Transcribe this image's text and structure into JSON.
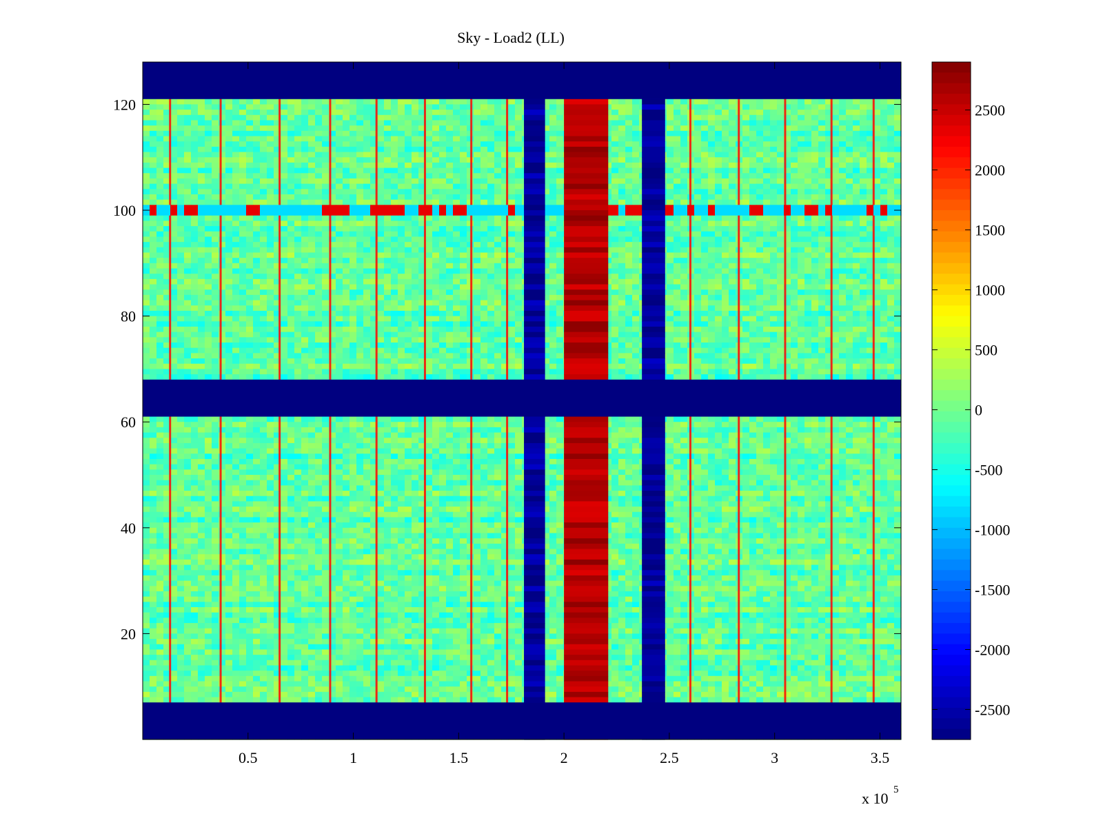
{
  "figure": {
    "background": "#ffffff"
  },
  "chart_data": {
    "type": "heatmap",
    "title": "Sky - Load2 (LL)",
    "xlabel": "",
    "ylabel": "",
    "xlim": [
      0,
      360000
    ],
    "ylim": [
      0,
      128
    ],
    "x_ticks": [
      50000,
      100000,
      150000,
      200000,
      250000,
      300000,
      350000
    ],
    "x_tick_labels": [
      "0.5",
      "1",
      "1.5",
      "2",
      "2.5",
      "3",
      "3.5"
    ],
    "x_exponent_label": {
      "base": "x 10",
      "exponent": "5"
    },
    "y_ticks": [
      20,
      40,
      60,
      80,
      100,
      120
    ],
    "y_tick_labels": [
      "20",
      "40",
      "60",
      "80",
      "100",
      "120"
    ],
    "colorbar": {
      "colormap": "jet",
      "clim": [
        -2750,
        2900
      ],
      "ticks": [
        2500,
        2000,
        1500,
        1000,
        500,
        0,
        -500,
        -1000,
        -1500,
        -2000,
        -2500
      ],
      "tick_labels": [
        "2500",
        "2000",
        "1500",
        "1000",
        "500",
        "0",
        "-500",
        "-1000",
        "-1500",
        "-2000",
        "-2500"
      ]
    },
    "masked_rows": [
      {
        "y": [
          0,
          7
        ],
        "value": -2750
      },
      {
        "y": [
          61,
          68
        ],
        "value": -2750
      },
      {
        "y": [
          121,
          128
        ],
        "value": -2750
      }
    ],
    "column_bands": [
      {
        "x": [
          181000,
          191000
        ],
        "value": -2600,
        "description": "low band"
      },
      {
        "x": [
          200000,
          221000
        ],
        "value": 2600,
        "description": "high band"
      },
      {
        "x": [
          237000,
          248000
        ],
        "value": -2600,
        "description": "low band"
      }
    ],
    "background_level": {
      "mean": -100,
      "spread": 450
    },
    "stripe_columns_x": [
      13000,
      37000,
      65000,
      89000,
      111000,
      134000,
      156000,
      173000,
      260000,
      283000,
      305000,
      327000,
      347000
    ],
    "hot_row_y": 100
  }
}
